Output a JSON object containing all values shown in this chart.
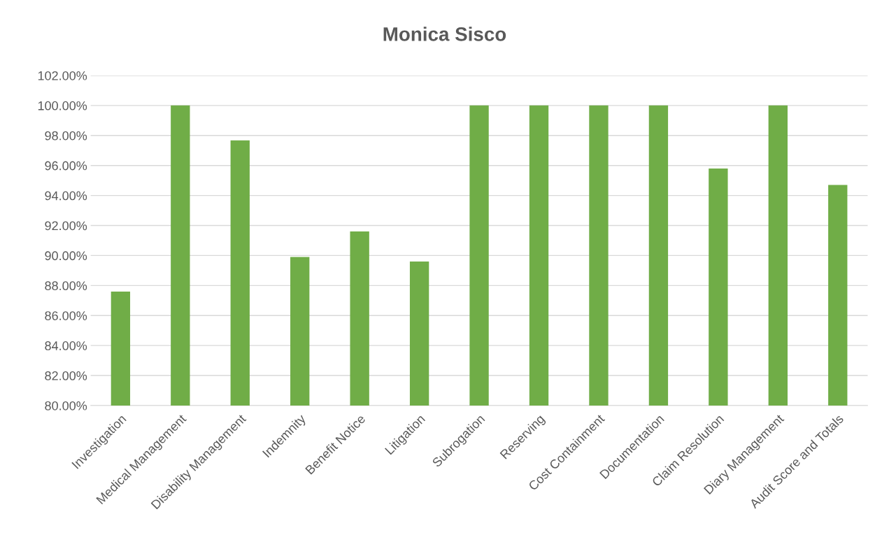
{
  "chart_data": {
    "type": "bar",
    "title": "Monica Sisco",
    "categories": [
      "Investigation",
      "Medical Management",
      "Disability Management",
      "Indemnity",
      "Benefit Notice",
      "Litigation",
      "Subrogation",
      "Reserving",
      "Cost Containment",
      "Documentation",
      "Claim Resolution",
      "Diary Management",
      "Audit Score and Totals"
    ],
    "values": [
      87.6,
      100,
      97.67,
      89.9,
      91.6,
      89.6,
      100,
      100,
      100,
      100,
      95.8,
      100,
      94.7
    ],
    "color": "#70ad47",
    "ylim": [
      80,
      102
    ],
    "yticks": [
      {
        "value": 80,
        "label": "80.00%"
      },
      {
        "value": 82,
        "label": "82.00%"
      },
      {
        "value": 84,
        "label": "84.00%"
      },
      {
        "value": 86,
        "label": "86.00%"
      },
      {
        "value": 88,
        "label": "88.00%"
      },
      {
        "value": 90,
        "label": "90.00%"
      },
      {
        "value": 92,
        "label": "92.00%"
      },
      {
        "value": 94,
        "label": "94.00%"
      },
      {
        "value": 96,
        "label": "96.00%"
      },
      {
        "value": 98,
        "label": "98.00%"
      },
      {
        "value": 100,
        "label": "100.00%"
      },
      {
        "value": 102,
        "label": "102.00%"
      }
    ],
    "grid": "y"
  }
}
